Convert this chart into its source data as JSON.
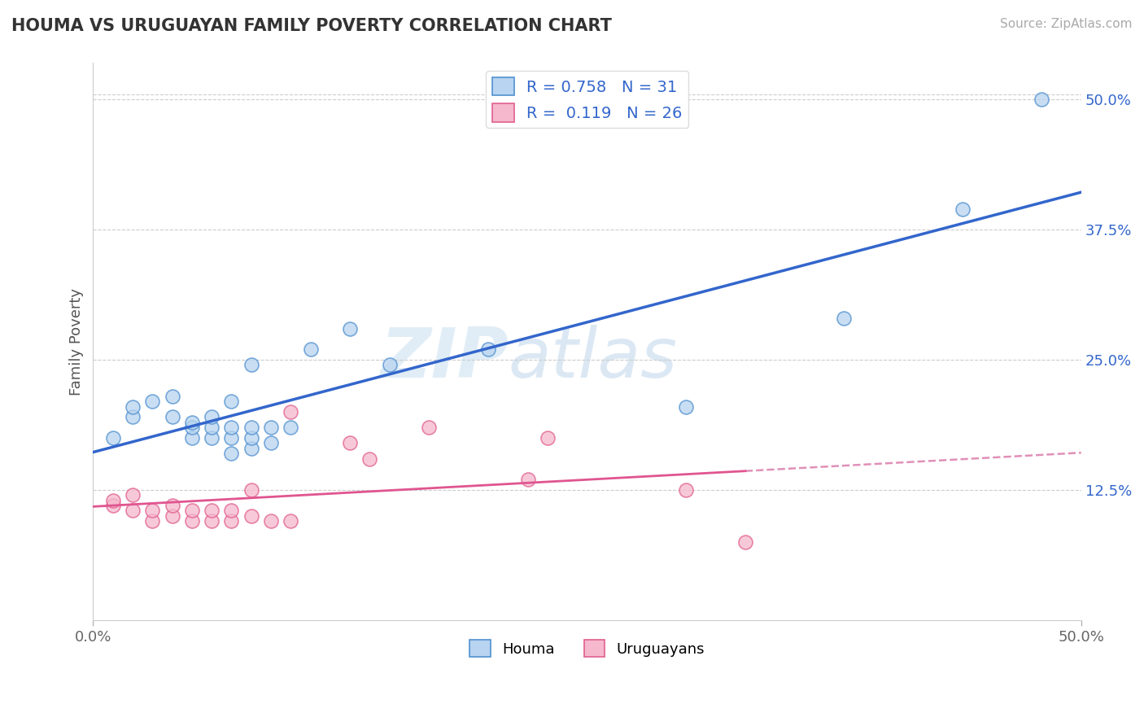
{
  "title": "HOUMA VS URUGUAYAN FAMILY POVERTY CORRELATION CHART",
  "source": "Source: ZipAtlas.com",
  "ylabel": "Family Poverty",
  "ytick_labels": [
    "12.5%",
    "25.0%",
    "37.5%",
    "50.0%"
  ],
  "ytick_values": [
    0.125,
    0.25,
    0.375,
    0.5
  ],
  "xlim": [
    0.0,
    0.5
  ],
  "ylim": [
    0.0,
    0.535
  ],
  "houma_R": "0.758",
  "houma_N": "31",
  "uruguayan_R": "0.119",
  "uruguayan_N": "26",
  "houma_face_color": "#b8d4f0",
  "houma_edge_color": "#5090d0",
  "uruguayan_face_color": "#f5b8cc",
  "uruguayan_edge_color": "#e06090",
  "houma_line_color": "#3366cc",
  "uruguayan_line_color": "#e05590",
  "uruguayan_dashed_color": "#e090b8",
  "legend_text_color": "#3366cc",
  "watermark_zip": "ZIP",
  "watermark_atlas": "atlas",
  "houma_x": [
    0.01,
    0.02,
    0.02,
    0.03,
    0.04,
    0.04,
    0.05,
    0.05,
    0.05,
    0.06,
    0.06,
    0.06,
    0.07,
    0.07,
    0.07,
    0.07,
    0.08,
    0.08,
    0.08,
    0.08,
    0.09,
    0.09,
    0.1,
    0.11,
    0.13,
    0.15,
    0.2,
    0.3,
    0.38,
    0.44,
    0.48
  ],
  "houma_y": [
    0.175,
    0.195,
    0.205,
    0.21,
    0.195,
    0.215,
    0.175,
    0.185,
    0.19,
    0.175,
    0.185,
    0.195,
    0.16,
    0.175,
    0.185,
    0.21,
    0.165,
    0.175,
    0.185,
    0.245,
    0.17,
    0.185,
    0.185,
    0.26,
    0.28,
    0.245,
    0.26,
    0.205,
    0.29,
    0.395,
    0.5
  ],
  "uruguayan_x": [
    0.01,
    0.01,
    0.02,
    0.02,
    0.03,
    0.03,
    0.04,
    0.04,
    0.05,
    0.05,
    0.06,
    0.06,
    0.07,
    0.07,
    0.08,
    0.08,
    0.09,
    0.1,
    0.1,
    0.13,
    0.14,
    0.17,
    0.22,
    0.23,
    0.3,
    0.33
  ],
  "uruguayan_y": [
    0.11,
    0.115,
    0.105,
    0.12,
    0.095,
    0.105,
    0.1,
    0.11,
    0.095,
    0.105,
    0.095,
    0.105,
    0.095,
    0.105,
    0.1,
    0.125,
    0.095,
    0.095,
    0.2,
    0.17,
    0.155,
    0.185,
    0.135,
    0.175,
    0.125,
    0.075
  ]
}
